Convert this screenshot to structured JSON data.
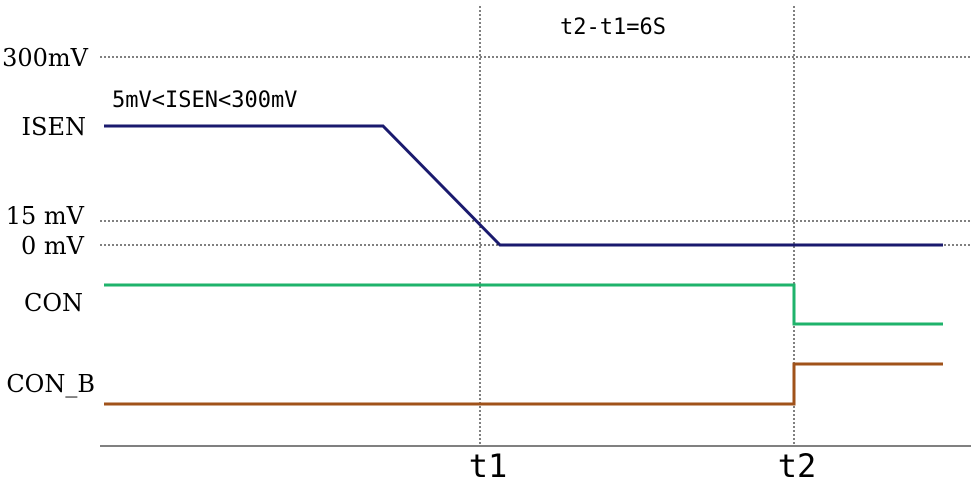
{
  "levels": {
    "v300": "300mV",
    "isen": "ISEN",
    "v15": "15 mV",
    "v0": "0 mV",
    "con": "CON",
    "con_b": "CON_B"
  },
  "annotations": {
    "range": "5mV<ISEN<300mV",
    "interval": "t2-t1=6S"
  },
  "ticks": {
    "t1": "t1",
    "t2": "t2"
  },
  "colors": {
    "isen": "#1a1a6e",
    "con": "#1fb36b",
    "con_b": "#a0521a",
    "reference": "#000000"
  }
}
